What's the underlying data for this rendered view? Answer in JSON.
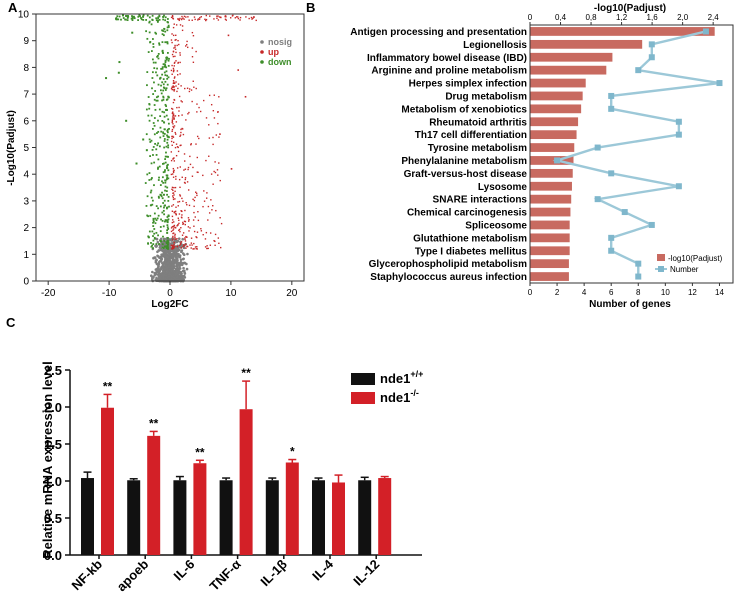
{
  "chart_data": [
    {
      "panel": "A",
      "type": "scatter",
      "xlabel": "Log2FC",
      "ylabel": "-Log10(Padjust)",
      "xlim": [
        -22,
        22
      ],
      "ylim": [
        0,
        10
      ],
      "x_ticks": [
        "-20",
        "-10",
        "0",
        "10",
        "20"
      ],
      "y_ticks": [
        "0",
        "1",
        "2",
        "3",
        "4",
        "5",
        "6",
        "7",
        "8",
        "9",
        "10"
      ],
      "legend": {
        "position": "top-right",
        "entries": [
          "nosig",
          "up",
          "down"
        ]
      },
      "colors": {
        "nosig": "#7f7f7f",
        "up": "#c62828",
        "down": "#3e8e2a"
      }
    },
    {
      "panel": "B",
      "type": "bar",
      "orientation": "horizontal",
      "categories": [
        "Antigen processing and presentation",
        "Legionellosis",
        "Inflammatory bowel disease (IBD)",
        "Arginine and proline metabolism",
        "Herpes simplex infection",
        "Drug metabolism",
        "Metabolism of xenobiotics",
        "Rheumatoid arthritis",
        "Th17 cell differentiation",
        "Tyrosine metabolism",
        "Phenylalanine metabolism",
        "Graft-versus-host disease",
        "Lysosome",
        "SNARE interactions",
        "Chemical carcinogenesis",
        "Spliceosome",
        "Glutathione metabolism",
        "Type I diabetes mellitus",
        "Glycerophospholipid metabolism",
        "Staphylococcus aureus infection"
      ],
      "series": [
        {
          "name": "-log10(Padjust)",
          "axis": "top",
          "values": [
            2.42,
            1.47,
            1.08,
            1.0,
            0.73,
            0.69,
            0.67,
            0.63,
            0.61,
            0.58,
            0.57,
            0.56,
            0.55,
            0.54,
            0.53,
            0.52,
            0.52,
            0.52,
            0.51,
            0.51
          ]
        },
        {
          "name": "Number",
          "axis": "bottom",
          "values": [
            13,
            9,
            9,
            8,
            14,
            6,
            6,
            11,
            11,
            5,
            2,
            6,
            11,
            5,
            7,
            9,
            6,
            6,
            8,
            8
          ]
        }
      ],
      "top_axis": {
        "label": "-log10(Padjust)",
        "ticks": [
          "0",
          "0,4",
          "0,8",
          "1,2",
          "1,6",
          "2,0",
          "2,4"
        ],
        "range": [
          0,
          2.66
        ]
      },
      "bottom_axis": {
        "label": "Number of genes",
        "ticks": [
          "0",
          "2",
          "4",
          "6",
          "8",
          "10",
          "12",
          "14"
        ],
        "range": [
          0,
          15
        ]
      },
      "legend": {
        "position": "bottom-right"
      },
      "colors": {
        "bar": "#c86a60",
        "line": "#9cc8d8",
        "marker": "#7fb7cc"
      }
    },
    {
      "panel": "C",
      "type": "bar",
      "categories": [
        "NF-kb",
        "apoeb",
        "IL-6",
        "TNF-α",
        "IL-1β",
        "IL-4",
        "IL-12"
      ],
      "series": [
        {
          "name": "nde1",
          "sup": "+/+",
          "color": "#111111",
          "values": [
            1.04,
            1.01,
            1.01,
            1.01,
            1.01,
            1.01,
            1.01
          ],
          "errors": [
            0.08,
            0.02,
            0.05,
            0.03,
            0.03,
            0.03,
            0.04
          ]
        },
        {
          "name": "nde1",
          "sup": "-/-",
          "color": "#d32027",
          "values": [
            1.99,
            1.61,
            1.24,
            1.97,
            1.25,
            0.98,
            1.04
          ],
          "errors": [
            0.18,
            0.06,
            0.04,
            0.38,
            0.04,
            0.1,
            0.02
          ]
        }
      ],
      "annotations": [
        "**",
        "**",
        "**",
        "**",
        "*",
        "",
        ""
      ],
      "ylabel": "Relative mRNA expression level",
      "ylim": [
        0,
        2.5
      ],
      "y_ticks": [
        "0.0",
        "0.5",
        "1.0",
        "1.5",
        "2.0",
        "2.5"
      ],
      "legend": {
        "position": "top-right"
      }
    }
  ],
  "panel_labels": {
    "a": "A",
    "b": "B",
    "c": "C"
  },
  "panel_b_legend": {
    "bar": "-log10(Padjust)",
    "line": "Number"
  }
}
